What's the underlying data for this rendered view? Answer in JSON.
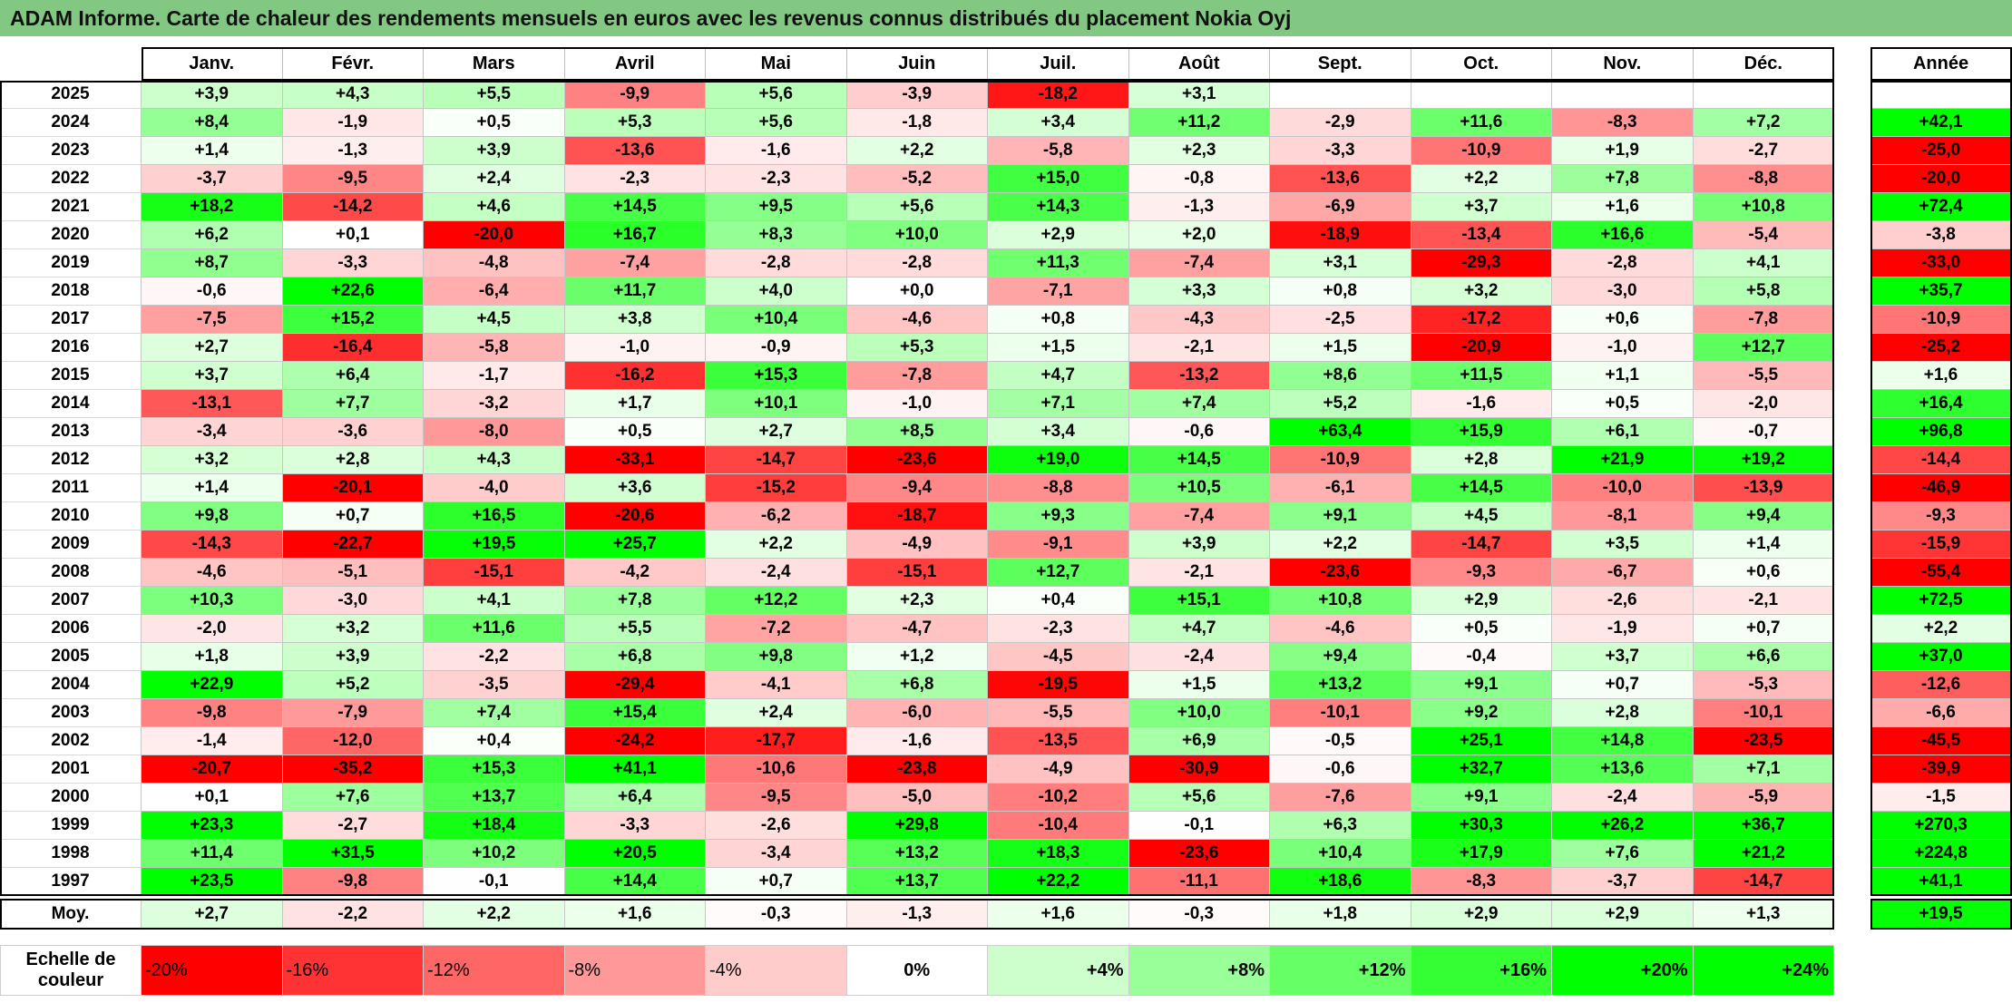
{
  "colors": {
    "title_bar": "#82c882"
  },
  "chart_data": {
    "type": "heatmap",
    "title": "ADAM Informe. Carte de chaleur des rendements mensuels en euros avec les revenus connus distribués du placement Nokia Oyj",
    "columns": [
      "Janv.",
      "Févr.",
      "Mars",
      "Avril",
      "Mai",
      "Juin",
      "Juil.",
      "Août",
      "Sept.",
      "Oct.",
      "Nov.",
      "Déc."
    ],
    "annual_label": "Année",
    "rows": [
      {
        "year": "2025",
        "values": [
          3.9,
          4.3,
          5.5,
          -9.9,
          5.6,
          -3.9,
          -18.2,
          3.1,
          null,
          null,
          null,
          null
        ],
        "annual": null
      },
      {
        "year": "2024",
        "values": [
          8.4,
          -1.9,
          0.5,
          5.3,
          5.6,
          -1.8,
          3.4,
          11.2,
          -2.9,
          11.6,
          -8.3,
          7.2
        ],
        "annual": 42.1
      },
      {
        "year": "2023",
        "values": [
          1.4,
          -1.3,
          3.9,
          -13.6,
          -1.6,
          2.2,
          -5.8,
          2.3,
          -3.3,
          -10.9,
          1.9,
          -2.7
        ],
        "annual": -25.0
      },
      {
        "year": "2022",
        "values": [
          -3.7,
          -9.5,
          2.4,
          -2.3,
          -2.3,
          -5.2,
          15.0,
          -0.8,
          -13.6,
          2.2,
          7.8,
          -8.8
        ],
        "annual": -20.0
      },
      {
        "year": "2021",
        "values": [
          18.2,
          -14.2,
          4.6,
          14.5,
          9.5,
          5.6,
          14.3,
          -1.3,
          -6.9,
          3.7,
          1.6,
          10.8
        ],
        "annual": 72.4
      },
      {
        "year": "2020",
        "values": [
          6.2,
          0.1,
          -20.0,
          16.7,
          8.3,
          10.0,
          2.9,
          2.0,
          -18.9,
          -13.4,
          16.6,
          -5.4
        ],
        "annual": -3.8
      },
      {
        "year": "2019",
        "values": [
          8.7,
          -3.3,
          -4.8,
          -7.4,
          -2.8,
          -2.8,
          11.3,
          -7.4,
          3.1,
          -29.3,
          -2.8,
          4.1
        ],
        "annual": -33.0
      },
      {
        "year": "2018",
        "values": [
          -0.6,
          22.6,
          -6.4,
          11.7,
          4.0,
          0.0,
          -7.1,
          3.3,
          0.8,
          3.2,
          -3.0,
          5.8
        ],
        "annual": 35.7
      },
      {
        "year": "2017",
        "values": [
          -7.5,
          15.2,
          4.5,
          3.8,
          10.4,
          -4.6,
          0.8,
          -4.3,
          -2.5,
          -17.2,
          0.6,
          -7.8
        ],
        "annual": -10.9
      },
      {
        "year": "2016",
        "values": [
          2.7,
          -16.4,
          -5.8,
          -1.0,
          -0.9,
          5.3,
          1.5,
          -2.1,
          1.5,
          -20.9,
          -1.0,
          12.7
        ],
        "annual": -25.2
      },
      {
        "year": "2015",
        "values": [
          3.7,
          6.4,
          -1.7,
          -16.2,
          15.3,
          -7.8,
          4.7,
          -13.2,
          8.6,
          11.5,
          1.1,
          -5.5
        ],
        "annual": 1.6
      },
      {
        "year": "2014",
        "values": [
          -13.1,
          7.7,
          -3.2,
          1.7,
          10.1,
          -1.0,
          7.1,
          7.4,
          5.2,
          -1.6,
          0.5,
          -2.0
        ],
        "annual": 16.4
      },
      {
        "year": "2013",
        "values": [
          -3.4,
          -3.6,
          -8.0,
          0.5,
          2.7,
          8.5,
          3.4,
          -0.6,
          63.4,
          15.9,
          6.1,
          -0.7
        ],
        "annual": 96.8
      },
      {
        "year": "2012",
        "values": [
          3.2,
          2.8,
          4.3,
          -33.1,
          -14.7,
          -23.6,
          19.0,
          14.5,
          -10.9,
          2.8,
          21.9,
          19.2
        ],
        "annual": -14.4
      },
      {
        "year": "2011",
        "values": [
          1.4,
          -20.1,
          -4.0,
          3.6,
          -15.2,
          -9.4,
          -8.8,
          10.5,
          -6.1,
          14.5,
          -10.0,
          -13.9
        ],
        "annual": -46.9
      },
      {
        "year": "2010",
        "values": [
          9.8,
          0.7,
          16.5,
          -20.6,
          -6.2,
          -18.7,
          9.3,
          -7.4,
          9.1,
          4.5,
          -8.1,
          9.4
        ],
        "annual": -9.3
      },
      {
        "year": "2009",
        "values": [
          -14.3,
          -22.7,
          19.5,
          25.7,
          2.2,
          -4.9,
          -9.1,
          3.9,
          2.2,
          -14.7,
          3.5,
          1.4
        ],
        "annual": -15.9
      },
      {
        "year": "2008",
        "values": [
          -4.6,
          -5.1,
          -15.1,
          -4.2,
          -2.4,
          -15.1,
          12.7,
          -2.1,
          -23.6,
          -9.3,
          -6.7,
          0.6
        ],
        "annual": -55.4
      },
      {
        "year": "2007",
        "values": [
          10.3,
          -3.0,
          4.1,
          7.8,
          12.2,
          2.3,
          0.4,
          15.1,
          10.8,
          2.9,
          -2.6,
          -2.1
        ],
        "annual": 72.5
      },
      {
        "year": "2006",
        "values": [
          -2.0,
          3.2,
          11.6,
          5.5,
          -7.2,
          -4.7,
          -2.3,
          4.7,
          -4.6,
          0.5,
          -1.9,
          0.7
        ],
        "annual": 2.2
      },
      {
        "year": "2005",
        "values": [
          1.8,
          3.9,
          -2.2,
          6.8,
          9.8,
          1.2,
          -4.5,
          -2.4,
          9.4,
          -0.4,
          3.7,
          6.6
        ],
        "annual": 37.0
      },
      {
        "year": "2004",
        "values": [
          22.9,
          5.2,
          -3.5,
          -29.4,
          -4.1,
          6.8,
          -19.5,
          1.5,
          13.2,
          9.1,
          0.7,
          -5.3
        ],
        "annual": -12.6
      },
      {
        "year": "2003",
        "values": [
          -9.8,
          -7.9,
          7.4,
          15.4,
          2.4,
          -6.0,
          -5.5,
          10.0,
          -10.1,
          9.2,
          2.8,
          -10.1
        ],
        "annual": -6.6
      },
      {
        "year": "2002",
        "values": [
          -1.4,
          -12.0,
          0.4,
          -24.2,
          -17.7,
          -1.6,
          -13.5,
          6.9,
          -0.5,
          25.1,
          14.8,
          -23.5
        ],
        "annual": -45.5
      },
      {
        "year": "2001",
        "values": [
          -20.7,
          -35.2,
          15.3,
          41.1,
          -10.6,
          -23.8,
          -4.9,
          -30.9,
          -0.6,
          32.7,
          13.6,
          7.1
        ],
        "annual": -39.9
      },
      {
        "year": "2000",
        "values": [
          0.1,
          7.6,
          13.7,
          6.4,
          -9.5,
          -5.0,
          -10.2,
          5.6,
          -7.6,
          9.1,
          -2.4,
          -5.9
        ],
        "annual": -1.5
      },
      {
        "year": "1999",
        "values": [
          23.3,
          -2.7,
          18.4,
          -3.3,
          -2.6,
          29.8,
          -10.4,
          -0.1,
          6.3,
          30.3,
          26.2,
          36.7
        ],
        "annual": 270.3
      },
      {
        "year": "1998",
        "values": [
          11.4,
          31.5,
          10.2,
          20.5,
          -3.4,
          13.2,
          18.3,
          -23.6,
          10.4,
          17.9,
          7.6,
          21.2
        ],
        "annual": 224.8
      },
      {
        "year": "1997",
        "values": [
          23.5,
          -9.8,
          -0.1,
          14.4,
          0.7,
          13.7,
          22.2,
          -11.1,
          18.6,
          -8.3,
          -3.7,
          -14.7
        ],
        "annual": 41.1
      }
    ],
    "average": {
      "label": "Moy.",
      "values": [
        2.7,
        -2.2,
        2.2,
        1.6,
        -0.3,
        -1.3,
        1.6,
        -0.3,
        1.8,
        2.9,
        2.9,
        1.3
      ],
      "annual": 19.5
    },
    "color_scale": {
      "label": "Echelle de couleur",
      "stops": [
        {
          "label": "-20%",
          "color": "#ff0000"
        },
        {
          "label": "-16%",
          "color": "#ff3333"
        },
        {
          "label": "-12%",
          "color": "#ff6666"
        },
        {
          "label": "-8%",
          "color": "#ff9999"
        },
        {
          "label": "-4%",
          "color": "#ffcccc"
        },
        {
          "label": "0%",
          "color": "#ffffff"
        },
        {
          "label": "+4%",
          "color": "#ccffcc"
        },
        {
          "label": "+8%",
          "color": "#99ff99"
        },
        {
          "label": "+12%",
          "color": "#66ff66"
        },
        {
          "label": "+16%",
          "color": "#33ff33"
        },
        {
          "label": "+20%",
          "color": "#00ff00"
        },
        {
          "label": "+24%",
          "color": "#00ff00"
        }
      ]
    }
  }
}
